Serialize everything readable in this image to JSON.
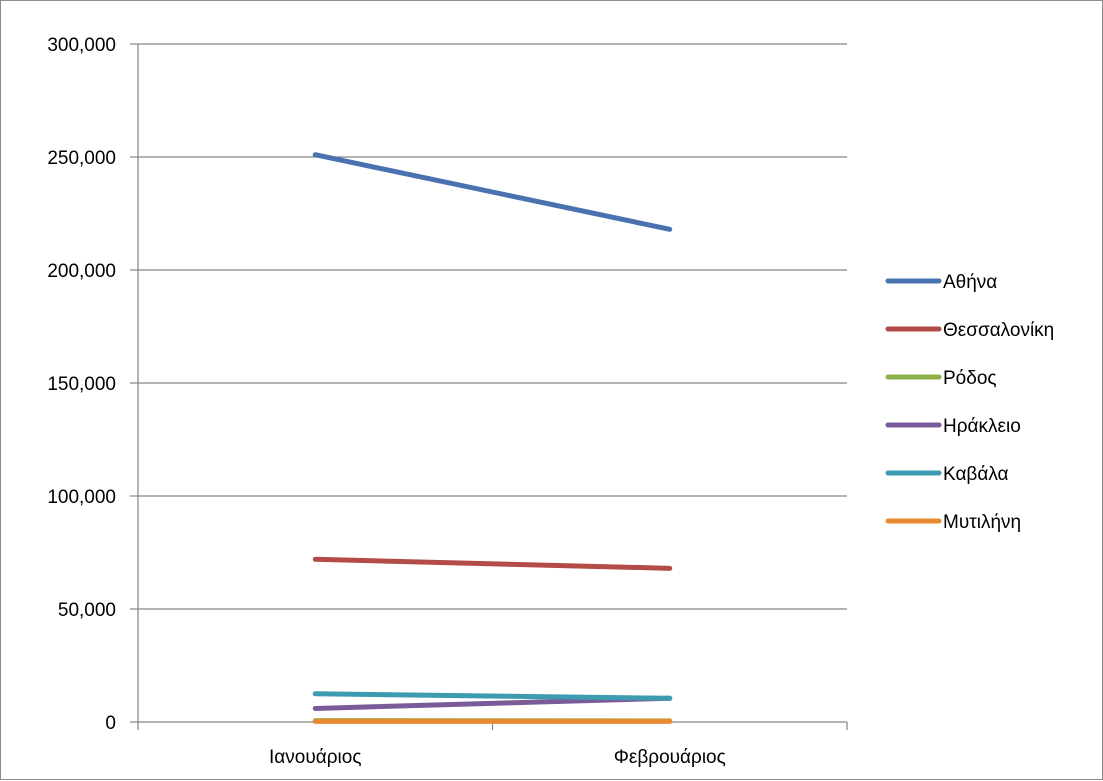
{
  "chart_data": {
    "type": "line",
    "title": "",
    "xlabel": "",
    "ylabel": "",
    "categories": [
      "Ιανουάριος",
      "Φεβρουάριος"
    ],
    "ylim": [
      0,
      300000
    ],
    "y_ticks": [
      0,
      50000,
      100000,
      150000,
      200000,
      250000,
      300000
    ],
    "y_tick_labels": [
      "0",
      "50,000",
      "100,000",
      "150,000",
      "200,000",
      "250,000",
      "300,000"
    ],
    "grid": true,
    "legend_position": "right",
    "series": [
      {
        "name": "Αθήνα",
        "color": "#4a72b0",
        "values": [
          251000,
          218000
        ]
      },
      {
        "name": "Θεσσαλονίκη",
        "color": "#b34b47",
        "values": [
          72000,
          68000
        ]
      },
      {
        "name": "Ρόδος",
        "color": "#8db04a",
        "values": [
          600,
          500
        ]
      },
      {
        "name": "Ηράκλειο",
        "color": "#7a5b9a",
        "values": [
          6000,
          10500
        ]
      },
      {
        "name": "Καβάλα",
        "color": "#3d9bb0",
        "values": [
          12500,
          10500
        ]
      },
      {
        "name": "Μυτιλήνη",
        "color": "#e98a33",
        "values": [
          300,
          300
        ]
      }
    ]
  }
}
